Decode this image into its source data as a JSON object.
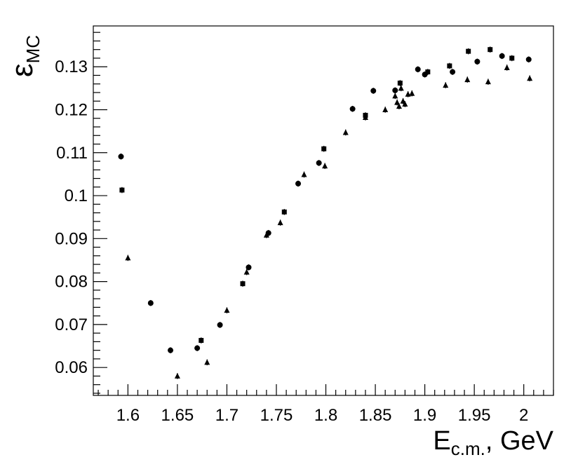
{
  "chart_data": {
    "type": "scatter",
    "title": "",
    "xlabel": {
      "main": "E",
      "sub": "c.m.",
      "suffix": ", GeV"
    },
    "ylabel": {
      "main": "ε",
      "sub": "MC"
    },
    "xlim": [
      1.565,
      2.03
    ],
    "ylim": [
      0.0535,
      0.1395
    ],
    "x_ticks": [
      1.6,
      1.65,
      1.7,
      1.75,
      1.8,
      1.85,
      1.9,
      1.95,
      2.0
    ],
    "x_tick_labels": [
      "1.6",
      "1.65",
      "1.7",
      "1.75",
      "1.8",
      "1.85",
      "1.9",
      "1.95",
      "2"
    ],
    "y_ticks": [
      0.06,
      0.07,
      0.08,
      0.09,
      0.1,
      0.11,
      0.12,
      0.13
    ],
    "y_tick_labels": [
      "0.06",
      "0.07",
      "0.08",
      "0.09",
      "0.1",
      "0.11",
      "0.12",
      "0.13"
    ],
    "grid": false,
    "legend": false,
    "marker_color": "#000000",
    "series": [
      {
        "marker": "circle",
        "points": [
          {
            "x": 1.593,
            "y": 0.1091,
            "err": 0.0007
          },
          {
            "x": 1.623,
            "y": 0.075,
            "err": 0.0007
          },
          {
            "x": 1.643,
            "y": 0.064,
            "err": 0.0007
          },
          {
            "x": 1.67,
            "y": 0.0645,
            "err": 0.0007
          },
          {
            "x": 1.693,
            "y": 0.0699,
            "err": 0.0007
          },
          {
            "x": 1.722,
            "y": 0.0833,
            "err": 0.0007
          },
          {
            "x": 1.742,
            "y": 0.0913,
            "err": 0.0007
          },
          {
            "x": 1.772,
            "y": 0.1028,
            "err": 0.0007
          },
          {
            "x": 1.793,
            "y": 0.1076,
            "err": 0.0007
          },
          {
            "x": 1.827,
            "y": 0.1202,
            "err": 0.0007
          },
          {
            "x": 1.848,
            "y": 0.1244,
            "err": 0.0007
          },
          {
            "x": 1.87,
            "y": 0.1245,
            "err": 0.0007
          },
          {
            "x": 1.893,
            "y": 0.1294,
            "err": 0.0007
          },
          {
            "x": 1.9,
            "y": 0.1282,
            "err": 0.0007
          },
          {
            "x": 1.928,
            "y": 0.1288,
            "err": 0.0007
          },
          {
            "x": 1.953,
            "y": 0.1312,
            "err": 0.0007
          },
          {
            "x": 1.978,
            "y": 0.1325,
            "err": 0.0007
          },
          {
            "x": 2.005,
            "y": 0.1317,
            "err": 0.0007
          }
        ]
      },
      {
        "marker": "square",
        "points": [
          {
            "x": 1.594,
            "y": 0.1013,
            "err": 0.0007
          },
          {
            "x": 1.674,
            "y": 0.0663,
            "err": 0.0007
          },
          {
            "x": 1.716,
            "y": 0.0795,
            "err": 0.0007
          },
          {
            "x": 1.758,
            "y": 0.0962,
            "err": 0.0007
          },
          {
            "x": 1.798,
            "y": 0.1109,
            "err": 0.0007
          },
          {
            "x": 1.84,
            "y": 0.1187,
            "err": 0.0007
          },
          {
            "x": 1.875,
            "y": 0.1262,
            "err": 0.0007
          },
          {
            "x": 1.903,
            "y": 0.1288,
            "err": 0.0007
          },
          {
            "x": 1.925,
            "y": 0.1302,
            "err": 0.0007
          },
          {
            "x": 1.944,
            "y": 0.1336,
            "err": 0.0007
          },
          {
            "x": 1.966,
            "y": 0.134,
            "err": 0.0007
          },
          {
            "x": 1.988,
            "y": 0.132,
            "err": 0.0007
          }
        ]
      },
      {
        "marker": "triangle",
        "points": [
          {
            "x": 1.6,
            "y": 0.0855,
            "err": 0.0007
          },
          {
            "x": 1.65,
            "y": 0.058,
            "err": 0.0007
          },
          {
            "x": 1.68,
            "y": 0.0612,
            "err": 0.0007
          },
          {
            "x": 1.7,
            "y": 0.0733,
            "err": 0.0007
          },
          {
            "x": 1.72,
            "y": 0.0822,
            "err": 0.0007
          },
          {
            "x": 1.74,
            "y": 0.0908,
            "err": 0.0007
          },
          {
            "x": 1.754,
            "y": 0.0937,
            "err": 0.0007
          },
          {
            "x": 1.778,
            "y": 0.1049,
            "err": 0.0007
          },
          {
            "x": 1.799,
            "y": 0.1069,
            "err": 0.0007
          },
          {
            "x": 1.82,
            "y": 0.1147,
            "err": 0.0007
          },
          {
            "x": 1.84,
            "y": 0.1182,
            "err": 0.0007
          },
          {
            "x": 1.86,
            "y": 0.12,
            "err": 0.0007
          },
          {
            "x": 1.87,
            "y": 0.1232,
            "err": 0.0007
          },
          {
            "x": 1.872,
            "y": 0.1217,
            "err": 0.0007
          },
          {
            "x": 1.874,
            "y": 0.1208,
            "err": 0.0007
          },
          {
            "x": 1.876,
            "y": 0.125,
            "err": 0.0007
          },
          {
            "x": 1.878,
            "y": 0.122,
            "err": 0.0007
          },
          {
            "x": 1.88,
            "y": 0.1213,
            "err": 0.0007
          },
          {
            "x": 1.883,
            "y": 0.1236,
            "err": 0.0007
          },
          {
            "x": 1.887,
            "y": 0.1238,
            "err": 0.0007
          },
          {
            "x": 1.921,
            "y": 0.1257,
            "err": 0.0007
          },
          {
            "x": 1.943,
            "y": 0.127,
            "err": 0.0007
          },
          {
            "x": 1.964,
            "y": 0.1265,
            "err": 0.0007
          },
          {
            "x": 1.983,
            "y": 0.1298,
            "err": 0.0007
          },
          {
            "x": 2.006,
            "y": 0.1273,
            "err": 0.0007
          }
        ]
      }
    ]
  }
}
